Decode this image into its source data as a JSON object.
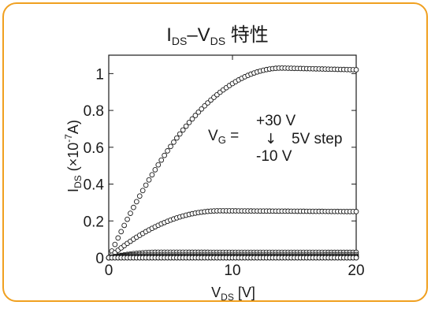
{
  "chart_data": {
    "type": "scatter",
    "title": {
      "main": "I",
      "sub": "DS",
      "dash": "–V",
      "sub2": "DS",
      "suffix": " 特性"
    },
    "xlabel": {
      "main": "V",
      "sub": "DS",
      "suffix": " [V]"
    },
    "ylabel": {
      "main": "I",
      "sub": "DS",
      "rest": " (×10",
      "exp": "-7",
      "unit": "A)"
    },
    "xlim": [
      0,
      20
    ],
    "ylim": [
      0,
      1.1
    ],
    "x_ticks": [
      "0",
      "10",
      "20"
    ],
    "y_ticks": [
      "0",
      "0.2",
      "0.4",
      "0.6",
      "0.8",
      "1"
    ],
    "x_tick_values": [
      0,
      10,
      20
    ],
    "y_tick_values": [
      0,
      0.2,
      0.4,
      0.6,
      0.8,
      1.0
    ],
    "marker": "open-circle",
    "annotation": {
      "vg_label": "V",
      "vg_sub": "G",
      "equals": " =",
      "top": "+30 V",
      "arrow": "↓",
      "step": "5V step",
      "bottom": "-10 V"
    },
    "series": [
      {
        "saturation": 1.03,
        "vsat": 14
      },
      {
        "saturation": 0.255,
        "vsat": 9
      },
      {
        "saturation": 0.03,
        "vsat": 4
      },
      {
        "saturation": 0.018,
        "vsat": 3
      },
      {
        "saturation": 0.01,
        "vsat": 2
      },
      {
        "saturation": 0.005,
        "vsat": 1.5
      },
      {
        "saturation": 0.002,
        "vsat": 1
      },
      {
        "saturation": 0.0,
        "vsat": 1
      },
      {
        "saturation": 0.0,
        "vsat": 1
      }
    ],
    "x_step": 0.25,
    "x_max": 20
  }
}
